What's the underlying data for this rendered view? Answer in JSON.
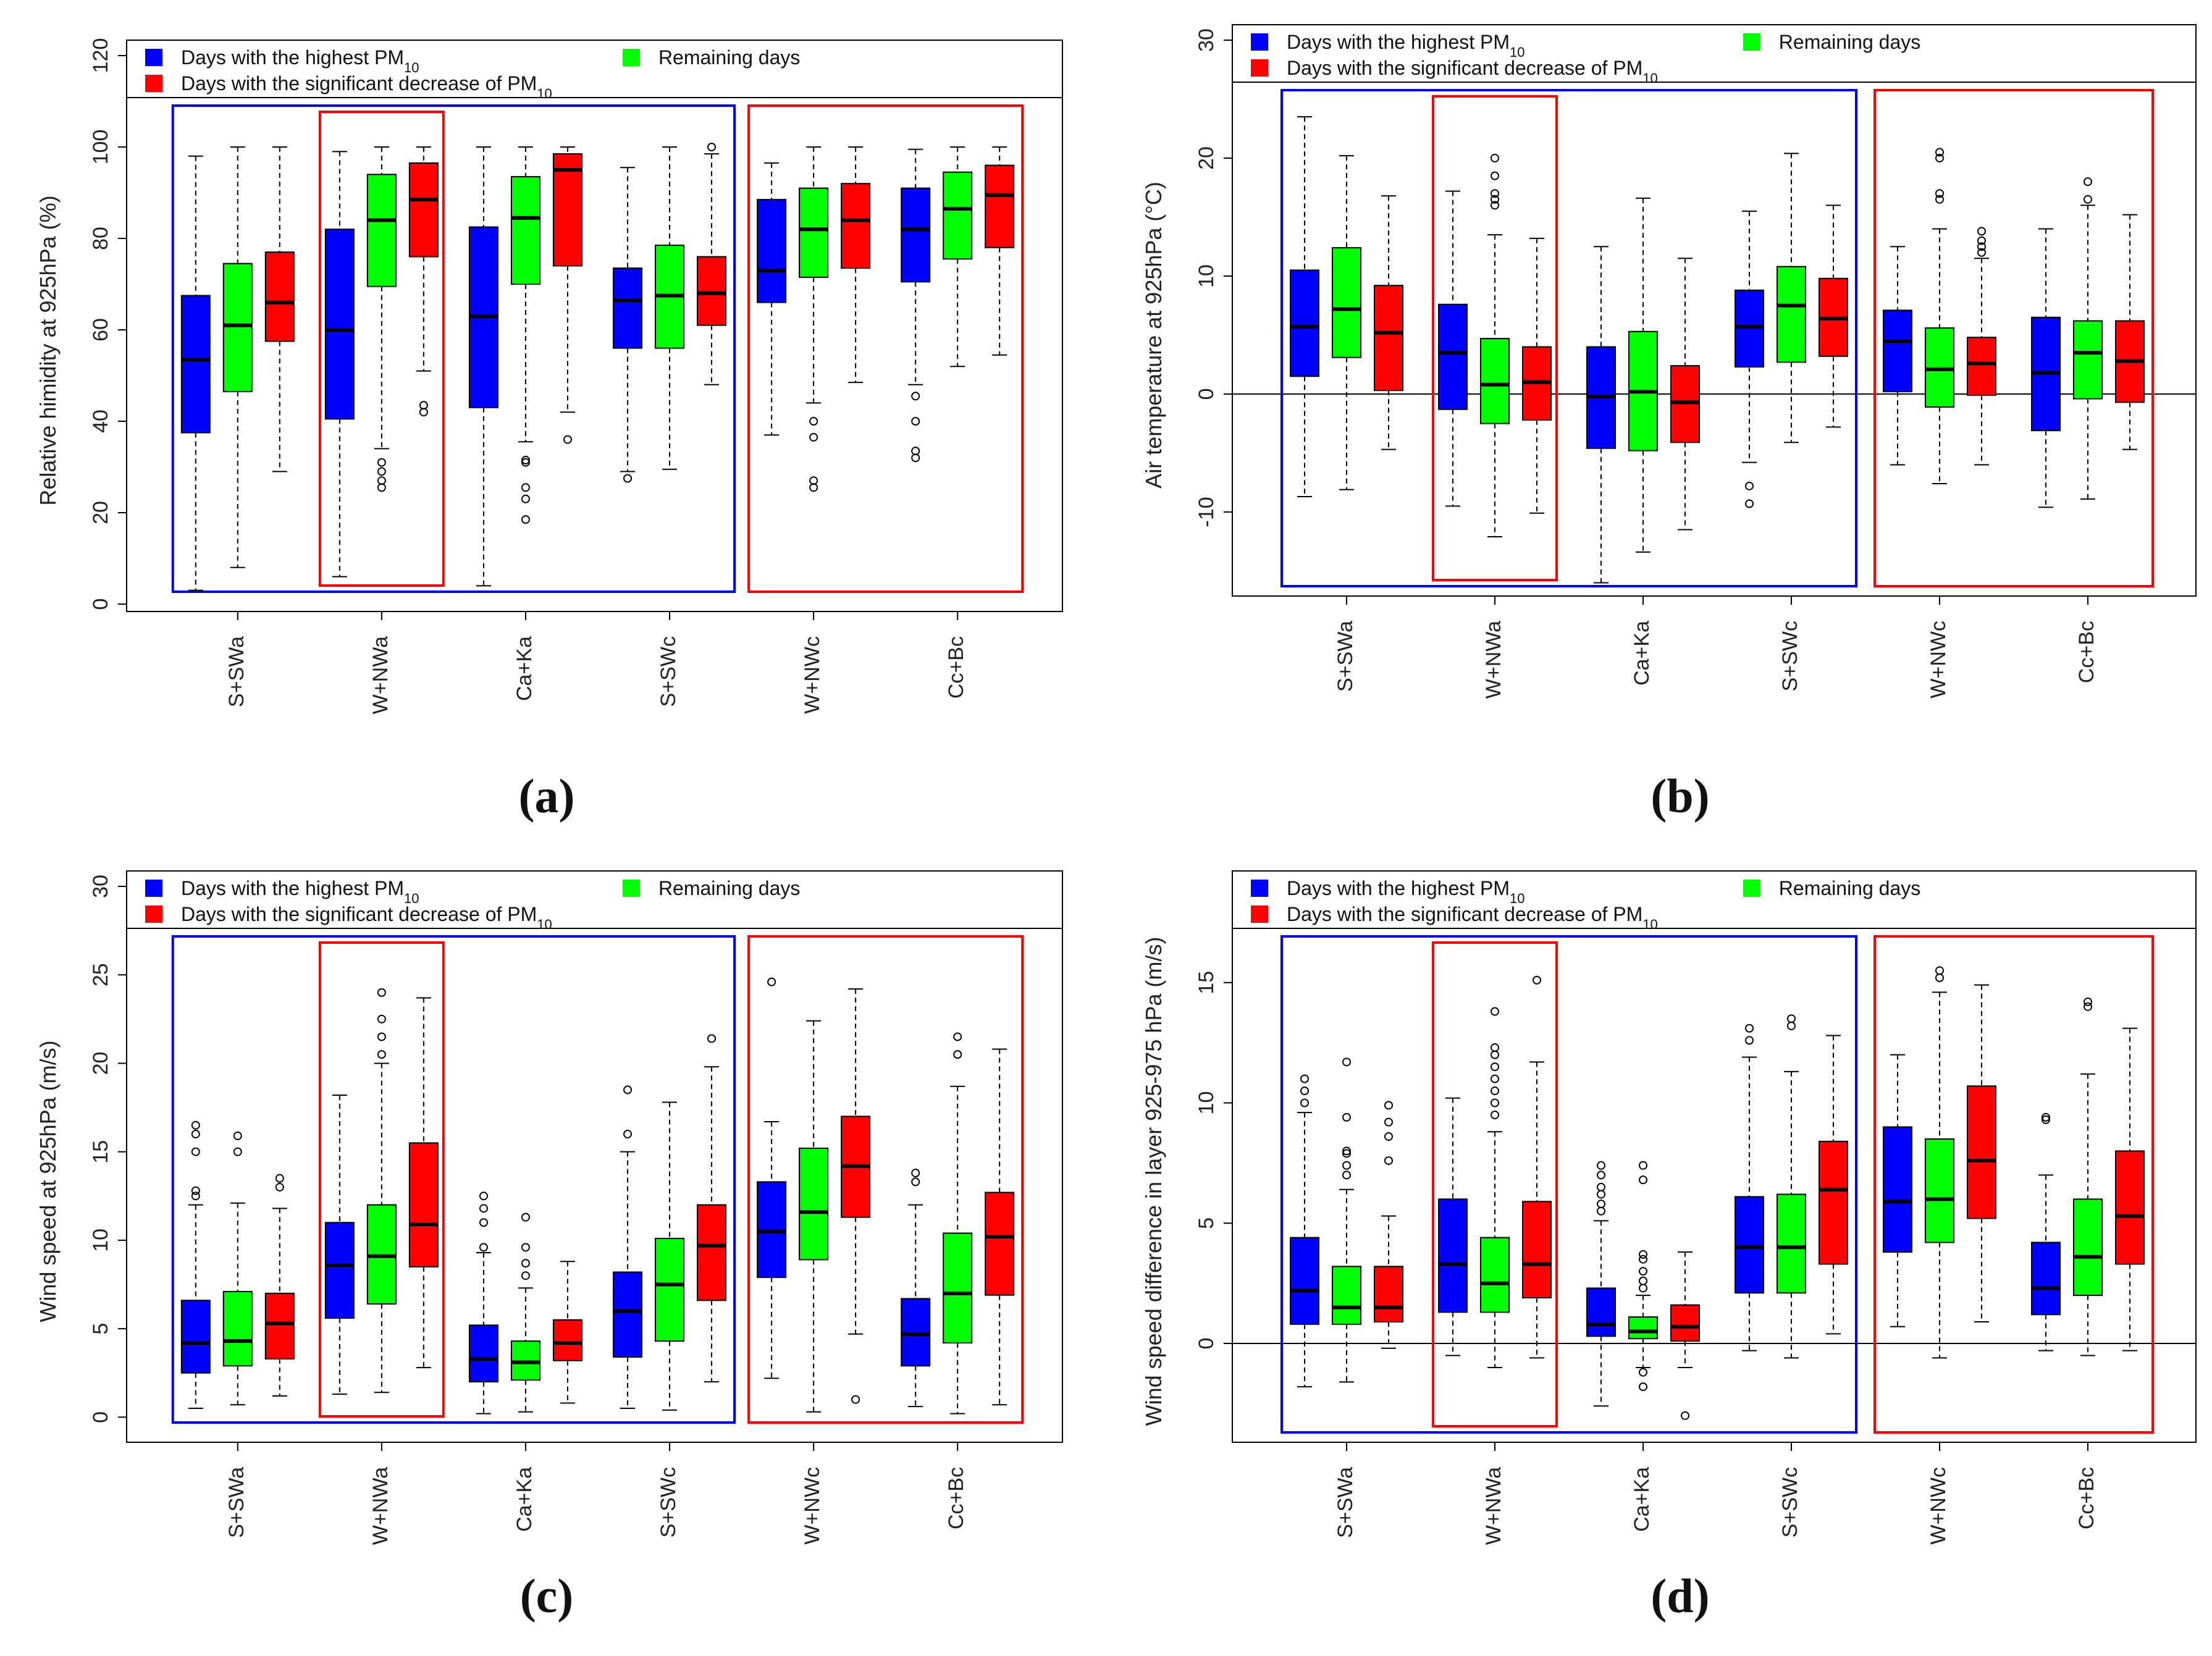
{
  "legend": {
    "highest": "Days with the highest PM",
    "decrease": "Days with the significant decrease of PM",
    "remaining": "Remaining days",
    "pm_subscript": "10"
  },
  "colors": {
    "highest": "#0000ff",
    "remaining": "#00ff00",
    "decrease": "#ff0000",
    "group_box_blue": "#0000ff",
    "group_box_red": "#ff0000"
  },
  "chart_data": [
    {
      "type": "boxplot",
      "panel_label": "(a)",
      "ylabel": "Relative himidity at 925hPa (%)",
      "ylim": [
        0,
        120
      ],
      "yticks": [
        0,
        20,
        40,
        60,
        80,
        100,
        120
      ],
      "zero_line": false,
      "categories": [
        "S+SWa",
        "W+NWa",
        "Ca+Ka",
        "S+SWc",
        "W+NWc",
        "Cc+Bc"
      ],
      "series": [
        {
          "name": "highest",
          "boxes": [
            {
              "min": 3,
              "q1": 37.5,
              "median": 53.5,
              "q3": 67.5,
              "max": 98,
              "outliers": []
            },
            {
              "min": 6,
              "q1": 40.5,
              "median": 60,
              "q3": 82,
              "max": 99,
              "outliers": []
            },
            {
              "min": 4,
              "q1": 43,
              "median": 63,
              "q3": 82.5,
              "max": 100,
              "outliers": []
            },
            {
              "min": 29,
              "q1": 56,
              "median": 66.5,
              "q3": 73.5,
              "max": 95.5,
              "outliers": [
                27.5
              ]
            },
            {
              "min": 37,
              "q1": 66,
              "median": 73,
              "q3": 88.5,
              "max": 96.5,
              "outliers": []
            },
            {
              "min": 48,
              "q1": 70.5,
              "median": 82,
              "q3": 91,
              "max": 99.5,
              "outliers": [
                32,
                33.5,
                40,
                45.5
              ]
            }
          ]
        },
        {
          "name": "remaining",
          "boxes": [
            {
              "min": 8,
              "q1": 46.5,
              "median": 61,
              "q3": 74.5,
              "max": 100,
              "outliers": []
            },
            {
              "min": 34,
              "q1": 69.5,
              "median": 84,
              "q3": 94,
              "max": 100,
              "outliers": [
                25.5,
                27,
                29,
                31
              ]
            },
            {
              "min": 35.5,
              "q1": 70,
              "median": 84.5,
              "q3": 93.5,
              "max": 100,
              "outliers": [
                18.5,
                23,
                25.5,
                31,
                31.5
              ]
            },
            {
              "min": 29.5,
              "q1": 56,
              "median": 67.5,
              "q3": 78.5,
              "max": 100,
              "outliers": []
            },
            {
              "min": 44,
              "q1": 71.5,
              "median": 82,
              "q3": 91,
              "max": 100,
              "outliers": [
                25.5,
                27,
                36.5,
                40
              ]
            },
            {
              "min": 52,
              "q1": 75.5,
              "median": 86.5,
              "q3": 94.5,
              "max": 100,
              "outliers": []
            }
          ]
        },
        {
          "name": "decrease",
          "boxes": [
            {
              "min": 29,
              "q1": 57.5,
              "median": 66,
              "q3": 77,
              "max": 100,
              "outliers": []
            },
            {
              "min": 51,
              "q1": 76,
              "median": 88.5,
              "q3": 96.5,
              "max": 100,
              "outliers": [
                42,
                43.5
              ]
            },
            {
              "min": 42,
              "q1": 74,
              "median": 95,
              "q3": 98.5,
              "max": 100,
              "outliers": [
                36
              ]
            },
            {
              "min": 48,
              "q1": 61,
              "median": 68,
              "q3": 76,
              "max": 98.5,
              "outliers": [
                100
              ]
            },
            {
              "min": 48.5,
              "q1": 73.5,
              "median": 84,
              "q3": 92,
              "max": 100,
              "outliers": []
            },
            {
              "min": 54.5,
              "q1": 78,
              "median": 89.5,
              "q3": 96,
              "max": 100,
              "outliers": []
            }
          ]
        }
      ]
    },
    {
      "type": "boxplot",
      "panel_label": "(b)",
      "ylabel": "Air temperature at 925hPa (°C)",
      "ylim": [
        -16.5,
        30
      ],
      "yticks": [
        -10,
        0,
        10,
        20,
        30
      ],
      "zero_line": true,
      "categories": [
        "S+SWa",
        "W+NWa",
        "Ca+Ka",
        "S+SWc",
        "W+NWc",
        "Cc+Bc"
      ],
      "series": [
        {
          "name": "highest",
          "boxes": [
            {
              "min": -8.7,
              "q1": 1.5,
              "median": 5.7,
              "q3": 10.5,
              "max": 23.5,
              "outliers": []
            },
            {
              "min": -9.5,
              "q1": -1.3,
              "median": 3.5,
              "q3": 7.6,
              "max": 17.2,
              "outliers": []
            },
            {
              "min": -16,
              "q1": -4.6,
              "median": -0.2,
              "q3": 4,
              "max": 12.5,
              "outliers": []
            },
            {
              "min": -5.8,
              "q1": 2.3,
              "median": 5.7,
              "q3": 8.8,
              "max": 15.5,
              "outliers": [
                -7.8,
                -9.3
              ]
            },
            {
              "min": -6,
              "q1": 0.2,
              "median": 4.5,
              "q3": 7.1,
              "max": 12.5,
              "outliers": []
            },
            {
              "min": -9.6,
              "q1": -3.1,
              "median": 1.8,
              "q3": 6.5,
              "max": 14,
              "outliers": []
            }
          ]
        },
        {
          "name": "remaining",
          "boxes": [
            {
              "min": -8.1,
              "q1": 3.1,
              "median": 7.2,
              "q3": 12.4,
              "max": 20.2,
              "outliers": []
            },
            {
              "min": -12.1,
              "q1": -2.5,
              "median": 0.8,
              "q3": 4.7,
              "max": 13.5,
              "outliers": [
                16,
                16.5,
                17,
                18.5,
                20
              ]
            },
            {
              "min": -13.4,
              "q1": -4.8,
              "median": 0.2,
              "q3": 5.3,
              "max": 16.6,
              "outliers": []
            },
            {
              "min": -4.1,
              "q1": 2.7,
              "median": 7.5,
              "q3": 10.8,
              "max": 20.4,
              "outliers": []
            },
            {
              "min": -7.6,
              "q1": -1.1,
              "median": 2.1,
              "q3": 5.6,
              "max": 14,
              "outliers": [
                16.5,
                17,
                20,
                20.5
              ]
            },
            {
              "min": -8.9,
              "q1": -0.4,
              "median": 3.5,
              "q3": 6.2,
              "max": 16,
              "outliers": [
                16.5,
                18
              ]
            }
          ]
        },
        {
          "name": "decrease",
          "boxes": [
            {
              "min": -4.7,
              "q1": 0.3,
              "median": 5.2,
              "q3": 9.2,
              "max": 16.8,
              "outliers": []
            },
            {
              "min": -10.1,
              "q1": -2.2,
              "median": 1,
              "q3": 4,
              "max": 13.2,
              "outliers": []
            },
            {
              "min": -11.5,
              "q1": -4.1,
              "median": -0.7,
              "q3": 2.4,
              "max": 11.5,
              "outliers": []
            },
            {
              "min": -2.8,
              "q1": 3.2,
              "median": 6.4,
              "q3": 9.8,
              "max": 16,
              "outliers": []
            },
            {
              "min": -6,
              "q1": -0.1,
              "median": 2.6,
              "q3": 4.8,
              "max": 11.5,
              "outliers": [
                12,
                12.5,
                13,
                13.8
              ]
            },
            {
              "min": -4.7,
              "q1": -0.7,
              "median": 2.8,
              "q3": 6.2,
              "max": 15.2,
              "outliers": []
            }
          ]
        }
      ]
    },
    {
      "type": "boxplot",
      "panel_label": "(c)",
      "ylabel": "Wind speed at 925hPa (m/s)",
      "ylim": [
        -1,
        30
      ],
      "yticks": [
        0,
        5,
        10,
        15,
        20,
        25,
        30
      ],
      "zero_line": false,
      "categories": [
        "S+SWa",
        "W+NWa",
        "Ca+Ka",
        "S+SWc",
        "W+NWc",
        "Cc+Bc"
      ],
      "series": [
        {
          "name": "highest",
          "boxes": [
            {
              "min": 0.5,
              "q1": 2.5,
              "median": 4.2,
              "q3": 6.6,
              "max": 12,
              "outliers": [
                12.5,
                12.8,
                15,
                16,
                16.5
              ]
            },
            {
              "min": 1.3,
              "q1": 5.6,
              "median": 8.6,
              "q3": 11,
              "max": 18.2,
              "outliers": []
            },
            {
              "min": 0.2,
              "q1": 2,
              "median": 3.3,
              "q3": 5.2,
              "max": 9.3,
              "outliers": [
                9.6,
                11,
                11.8,
                12.5
              ]
            },
            {
              "min": 0.5,
              "q1": 3.4,
              "median": 6,
              "q3": 8.2,
              "max": 15,
              "outliers": [
                16,
                18.5
              ]
            },
            {
              "min": 2.2,
              "q1": 7.9,
              "median": 10.5,
              "q3": 13.3,
              "max": 16.7,
              "outliers": [
                24.6
              ]
            },
            {
              "min": 0.6,
              "q1": 2.9,
              "median": 4.7,
              "q3": 6.7,
              "max": 12,
              "outliers": [
                13.3,
                13.8
              ]
            }
          ]
        },
        {
          "name": "remaining",
          "boxes": [
            {
              "min": 0.7,
              "q1": 2.9,
              "median": 4.3,
              "q3": 7.1,
              "max": 12.1,
              "outliers": [
                15,
                15.9
              ]
            },
            {
              "min": 1.4,
              "q1": 6.4,
              "median": 9.1,
              "q3": 12,
              "max": 20,
              "outliers": [
                20.5,
                21.5,
                22.5,
                24
              ]
            },
            {
              "min": 0.3,
              "q1": 2.1,
              "median": 3.1,
              "q3": 4.3,
              "max": 7.3,
              "outliers": [
                8,
                8.7,
                9.6,
                11.3
              ]
            },
            {
              "min": 0.4,
              "q1": 4.3,
              "median": 7.5,
              "q3": 10.1,
              "max": 17.8,
              "outliers": []
            },
            {
              "min": 0.3,
              "q1": 8.9,
              "median": 11.6,
              "q3": 15.2,
              "max": 22.4,
              "outliers": []
            },
            {
              "min": 0.2,
              "q1": 4.2,
              "median": 7,
              "q3": 10.4,
              "max": 18.7,
              "outliers": [
                20.5,
                21.5
              ]
            }
          ]
        },
        {
          "name": "decrease",
          "boxes": [
            {
              "min": 1.2,
              "q1": 3.3,
              "median": 5.3,
              "q3": 7,
              "max": 11.8,
              "outliers": [
                13,
                13.5
              ]
            },
            {
              "min": 2.8,
              "q1": 8.5,
              "median": 10.9,
              "q3": 15.5,
              "max": 23.7,
              "outliers": []
            },
            {
              "min": 0.8,
              "q1": 3.2,
              "median": 4.2,
              "q3": 5.5,
              "max": 8.8,
              "outliers": []
            },
            {
              "min": 2,
              "q1": 6.6,
              "median": 9.7,
              "q3": 12,
              "max": 19.8,
              "outliers": [
                21.4
              ]
            },
            {
              "min": 4.7,
              "q1": 11.3,
              "median": 14.2,
              "q3": 17,
              "max": 24.2,
              "outliers": [
                1
              ]
            },
            {
              "min": 0.7,
              "q1": 6.9,
              "median": 10.2,
              "q3": 12.7,
              "max": 20.8,
              "outliers": []
            }
          ]
        }
      ]
    },
    {
      "type": "boxplot",
      "panel_label": "(d)",
      "ylabel": "Wind speed difference in layer 925-975 hPa (m/s)",
      "ylim": [
        -3.8,
        19
      ],
      "yticks": [
        0,
        5,
        10,
        15
      ],
      "zero_line": true,
      "categories": [
        "S+SWa",
        "W+NWa",
        "Ca+Ka",
        "S+SWc",
        "W+NWc",
        "Cc+Bc"
      ],
      "series": [
        {
          "name": "highest",
          "boxes": [
            {
              "min": -1.8,
              "q1": 0.8,
              "median": 2.2,
              "q3": 4.4,
              "max": 9.6,
              "outliers": [
                10,
                10.5,
                11
              ]
            },
            {
              "min": -0.5,
              "q1": 1.3,
              "median": 3.3,
              "q3": 6,
              "max": 10.2,
              "outliers": []
            },
            {
              "min": -2.6,
              "q1": 0.3,
              "median": 0.8,
              "q3": 2.3,
              "max": 5.1,
              "outliers": [
                5.5,
                5.8,
                6.2,
                6.5,
                7,
                7.4
              ]
            },
            {
              "min": -0.3,
              "q1": 2.1,
              "median": 4,
              "q3": 6.1,
              "max": 11.9,
              "outliers": [
                12.6,
                13.1
              ]
            },
            {
              "min": 0.7,
              "q1": 3.8,
              "median": 5.9,
              "q3": 9,
              "max": 12,
              "outliers": []
            },
            {
              "min": -0.3,
              "q1": 1.2,
              "median": 2.3,
              "q3": 4.2,
              "max": 7,
              "outliers": [
                9.3,
                9.4
              ]
            }
          ]
        },
        {
          "name": "remaining",
          "boxes": [
            {
              "min": -1.6,
              "q1": 0.8,
              "median": 1.5,
              "q3": 3.2,
              "max": 6.4,
              "outliers": [
                7,
                7.4,
                7.9,
                8,
                9.4,
                11.7
              ]
            },
            {
              "min": -1,
              "q1": 1.3,
              "median": 2.5,
              "q3": 4.4,
              "max": 8.8,
              "outliers": [
                9.5,
                10,
                10.5,
                11,
                11.5,
                12,
                12.3,
                13.8
              ]
            },
            {
              "min": -1,
              "q1": 0.2,
              "median": 0.5,
              "q3": 1.1,
              "max": 2,
              "outliers": [
                2.3,
                2.6,
                3,
                3.5,
                3.7,
                6.8,
                7.4,
                -1.2,
                -1.8
              ]
            },
            {
              "min": -0.6,
              "q1": 2.1,
              "median": 4,
              "q3": 6.2,
              "max": 11.3,
              "outliers": [
                13.2,
                13.5
              ]
            },
            {
              "min": -0.6,
              "q1": 4.2,
              "median": 6,
              "q3": 8.5,
              "max": 14.6,
              "outliers": [
                15.2,
                15.5
              ]
            },
            {
              "min": -0.5,
              "q1": 2,
              "median": 3.6,
              "q3": 6,
              "max": 11.2,
              "outliers": [
                14,
                14.2
              ]
            }
          ]
        },
        {
          "name": "decrease",
          "boxes": [
            {
              "min": -0.2,
              "q1": 0.9,
              "median": 1.5,
              "q3": 3.2,
              "max": 5.3,
              "outliers": [
                7.6,
                8.6,
                9.2,
                9.9
              ]
            },
            {
              "min": -0.6,
              "q1": 1.9,
              "median": 3.3,
              "q3": 5.9,
              "max": 11.7,
              "outliers": [
                15.1
              ]
            },
            {
              "min": -1,
              "q1": 0.1,
              "median": 0.7,
              "q3": 1.6,
              "max": 3.8,
              "outliers": [
                -3
              ]
            },
            {
              "min": 0.4,
              "q1": 3.3,
              "median": 6.4,
              "q3": 8.4,
              "max": 12.8,
              "outliers": []
            },
            {
              "min": 0.9,
              "q1": 5.2,
              "median": 7.6,
              "q3": 10.7,
              "max": 14.9,
              "outliers": []
            },
            {
              "min": -0.3,
              "q1": 3.3,
              "median": 5.3,
              "q3": 8,
              "max": 13.1,
              "outliers": []
            }
          ]
        }
      ]
    }
  ]
}
